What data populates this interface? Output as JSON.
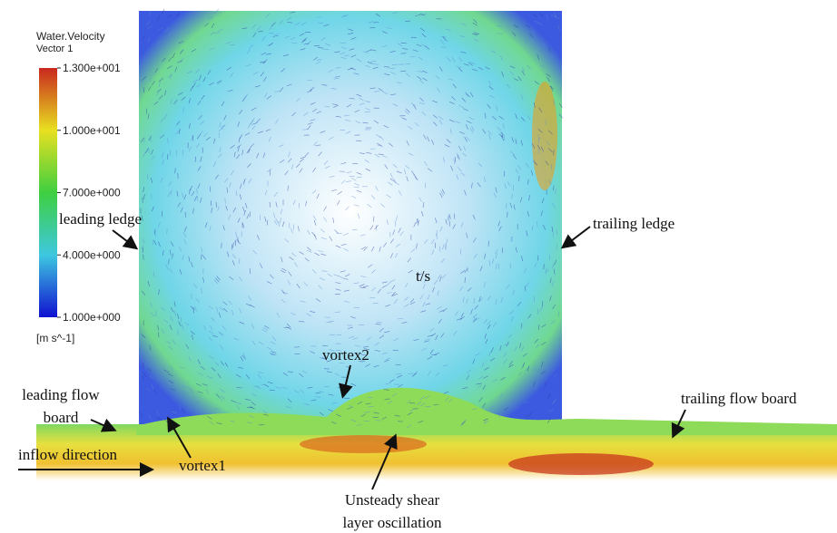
{
  "legend": {
    "title": [
      "Water.Velocity",
      "Vector 1"
    ],
    "unit": "[m s^-1]",
    "range": [
      1,
      13
    ],
    "ticks": [
      {
        "value": 13,
        "label": "1.300e+001"
      },
      {
        "value": 10,
        "label": "1.000e+001"
      },
      {
        "value": 7,
        "label": "7.000e+000"
      },
      {
        "value": 4,
        "label": "4.000e+000"
      },
      {
        "value": 1,
        "label": "1.000e+000"
      }
    ]
  },
  "annotations": {
    "leading_ledge": "leading ledge",
    "trailing_ledge": "trailing ledge",
    "time": "t/s",
    "vortex2": "vortex2",
    "leading_flow_board": [
      "leading flow",
      "board"
    ],
    "trailing_flow_board": "trailing flow board",
    "inflow_direction": "inflow direction",
    "vortex1": "vortex1",
    "shear_layer": [
      "Unsteady shear",
      "layer oscillation"
    ]
  }
}
